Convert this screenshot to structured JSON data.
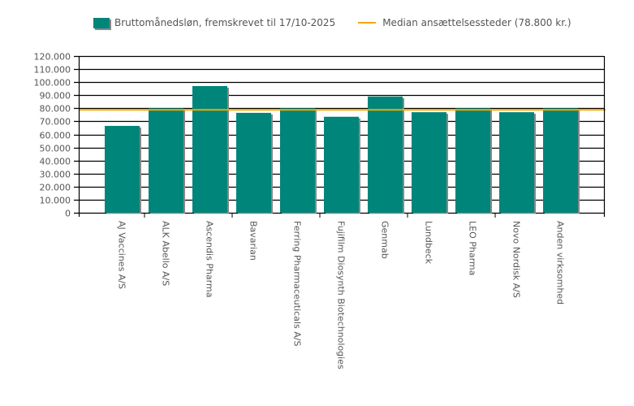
{
  "chart_data": {
    "type": "bar",
    "title": "",
    "xlabel": "",
    "ylabel": "",
    "ylim": [
      0,
      120000
    ],
    "yticks": [
      0,
      10000,
      20000,
      30000,
      40000,
      50000,
      60000,
      70000,
      80000,
      90000,
      100000,
      110000,
      120000
    ],
    "ytick_labels": [
      "0",
      "10.000",
      "20.000",
      "30.000",
      "40.000",
      "50.000",
      "60.000",
      "70.000",
      "80.000",
      "90.000",
      "100.000",
      "110.000",
      "120.000"
    ],
    "grid": true,
    "legend_position": "top",
    "categories": [
      "AJ Vaccines A/S",
      "ALK Abello A/S",
      "Ascendis Pharma",
      "Bavarian",
      "Ferring Pharmaceuticals A/S",
      "Fujifilm Diosynth Biotechnologies",
      "Genmab",
      "Lundbeck",
      "LEO Pharma",
      "Novo Nordisk A/S",
      "Anden virksomhed"
    ],
    "series": [
      {
        "name": "Bruttomånedsløn, fremskrevet til 17/10-2025",
        "color": "#00857a",
        "values": [
          66500,
          80000,
          97000,
          76500,
          80000,
          73500,
          89000,
          77000,
          80000,
          77000,
          80000
        ]
      }
    ],
    "reference_line": {
      "name": "Median ansættelsessteder (78.800 kr.)",
      "value": 78800,
      "color": "#f5a800"
    }
  }
}
